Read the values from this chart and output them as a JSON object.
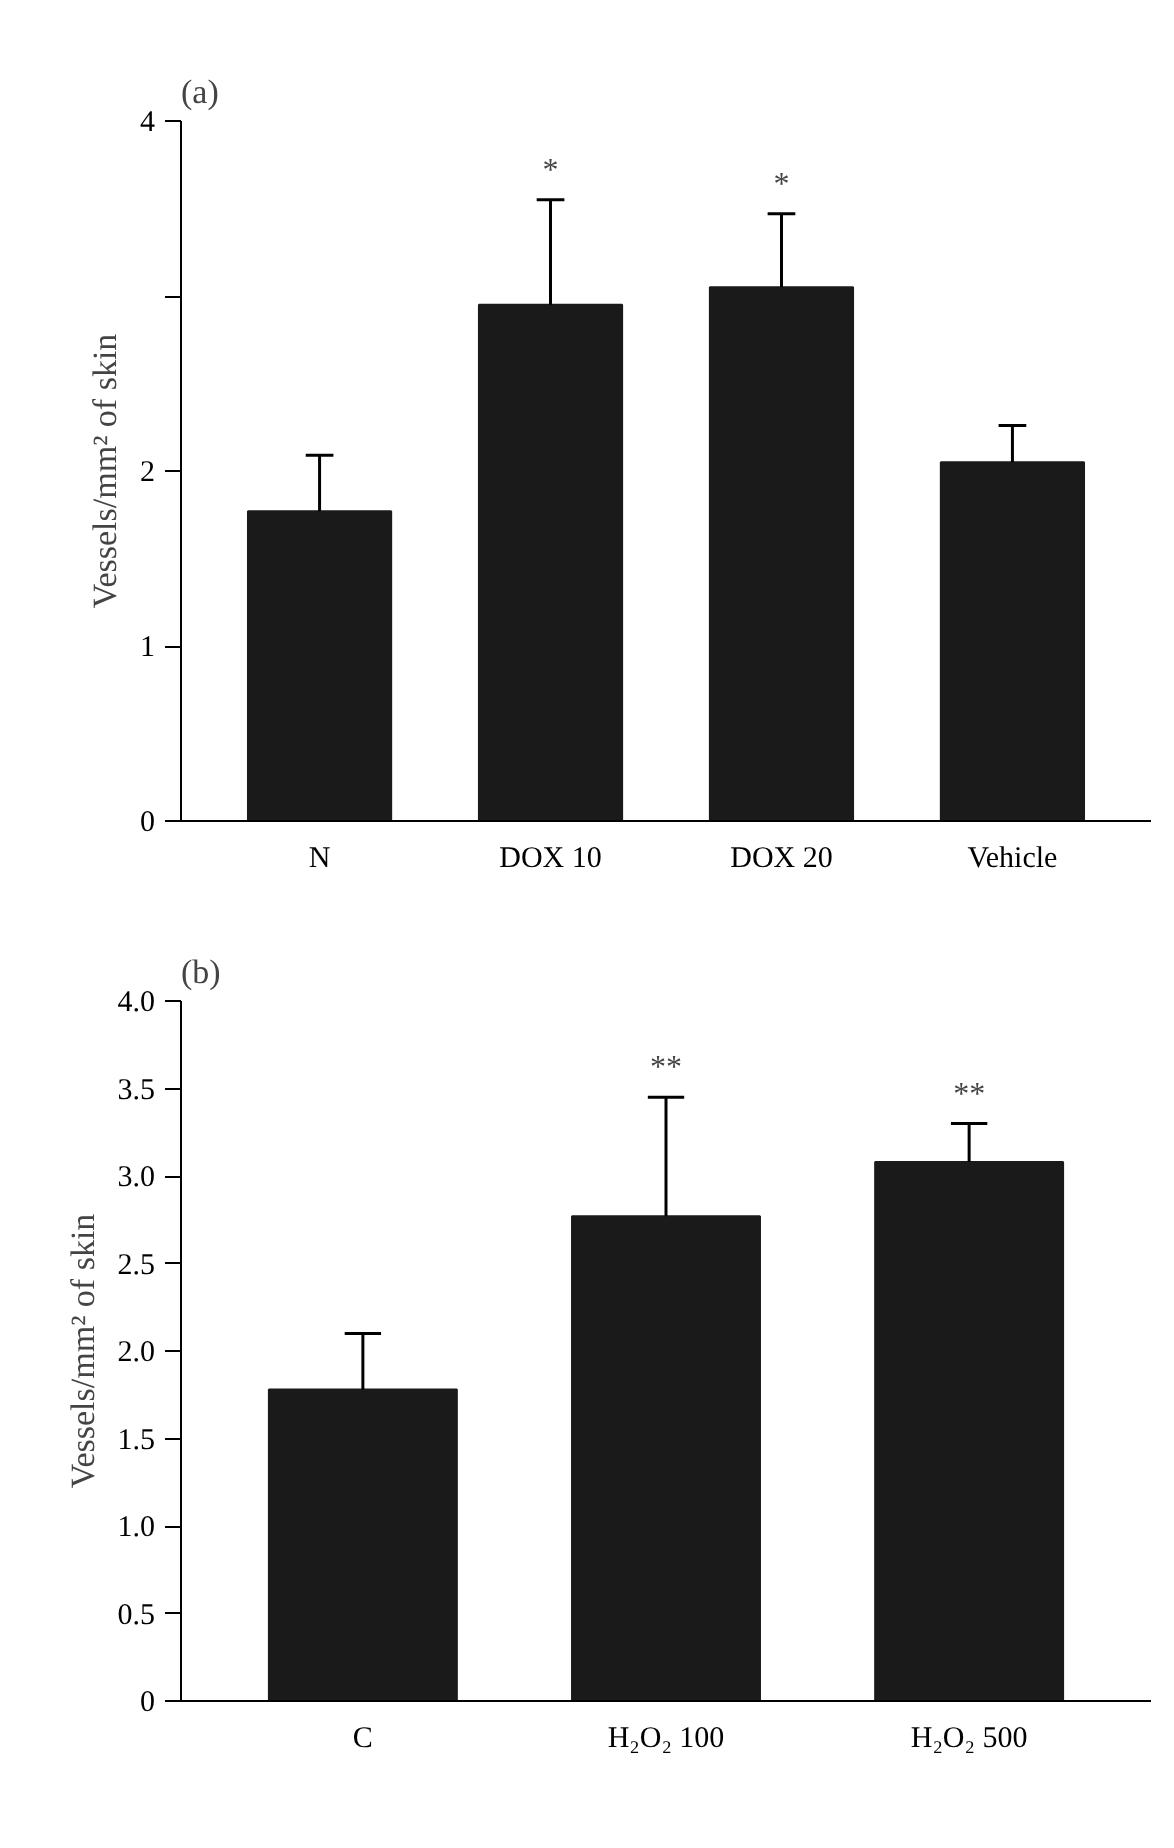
{
  "chart_data": [
    {
      "type": "bar",
      "title": "(a)",
      "ylabel": "Vessels/mm² of skin",
      "categories": [
        "N",
        "DOX 10",
        "DOX 20",
        "Vehicle"
      ],
      "values": [
        1.77,
        2.95,
        3.05,
        2.05
      ],
      "color": "#1a1a1a",
      "errors": [
        [
          1.77,
          2.09
        ],
        [
          2.95,
          3.55
        ],
        [
          3.05,
          3.47
        ],
        [
          2.05,
          2.26
        ]
      ],
      "ylim": [
        0,
        4
      ],
      "yticks": [
        0,
        1,
        2,
        {
          "value": 3,
          "label": null
        },
        4
      ],
      "grid": false,
      "annotations": [
        {
          "text": "*",
          "x": "DOX 10",
          "y": 3.55
        },
        {
          "text": "*",
          "x": "DOX 20",
          "y": 3.47
        }
      ]
    },
    {
      "type": "bar",
      "title": "(b)",
      "ylabel": "Vessels/mm² of skin",
      "categories": [
        "C",
        "H₂O₂ 100",
        "H₂O₂ 500"
      ],
      "values": [
        1.78,
        2.77,
        3.08
      ],
      "color": "#1a1a1a",
      "errors": [
        [
          1.78,
          2.1
        ],
        [
          2.77,
          3.45
        ],
        [
          3.08,
          3.3
        ]
      ],
      "ylim": [
        0,
        4
      ],
      "yticks": [
        0,
        0.5,
        {
          "value": 1,
          "label": "1.0"
        },
        1.5,
        {
          "value": 2,
          "label": "2.0"
        },
        2.5,
        {
          "value": 3,
          "label": "3.0"
        },
        3.5,
        {
          "value": 4,
          "label": "4.0"
        }
      ],
      "grid": false,
      "annotations": [
        {
          "text": "**",
          "x": "H₂O₂ 100",
          "y": 3.45
        },
        {
          "text": "**",
          "x": "H₂O₂ 500",
          "y": 3.3
        }
      ]
    }
  ]
}
